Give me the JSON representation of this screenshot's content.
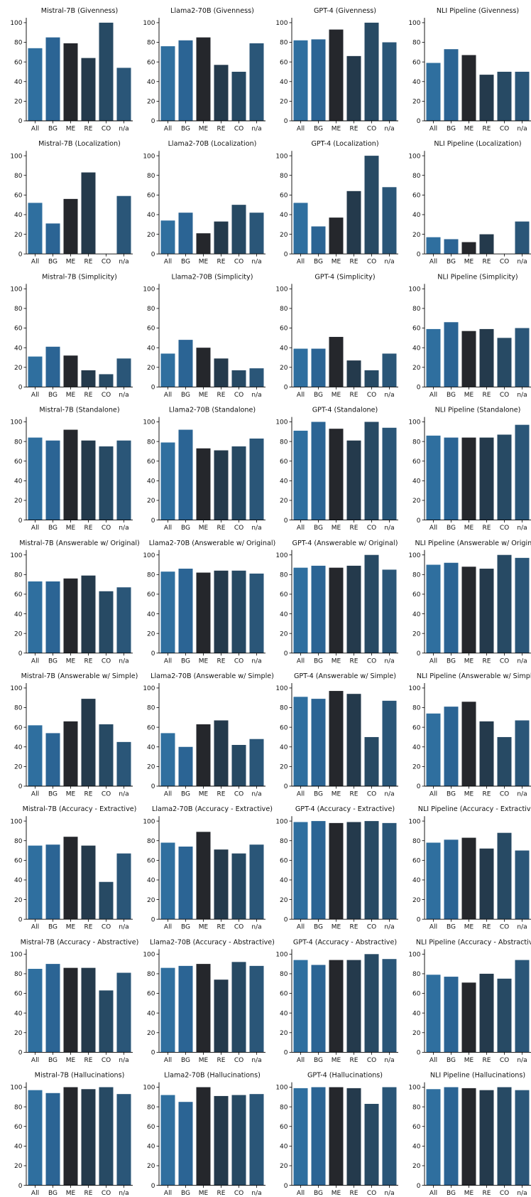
{
  "colors": [
    "#2f6f9f",
    "#2b6494",
    "#25272c",
    "#243a4c",
    "#274a64",
    "#2a5678"
  ],
  "chart_data": [
    {
      "type": "bar",
      "title": "Mistral-7B (Givenness)",
      "categories": [
        "All",
        "BG",
        "ME",
        "RE",
        "CO",
        "n/a"
      ],
      "values": [
        74,
        85,
        79,
        64,
        100,
        54
      ],
      "ylim": [
        0,
        105
      ],
      "yticks": [
        0,
        20,
        40,
        60,
        80,
        100
      ]
    },
    {
      "type": "bar",
      "title": "Llama2-70B (Givenness)",
      "categories": [
        "All",
        "BG",
        "ME",
        "RE",
        "CO",
        "n/a"
      ],
      "values": [
        76,
        82,
        85,
        57,
        50,
        79
      ],
      "ylim": [
        0,
        105
      ],
      "yticks": [
        0,
        20,
        40,
        60,
        80,
        100
      ]
    },
    {
      "type": "bar",
      "title": "GPT-4 (Givenness)",
      "categories": [
        "All",
        "BG",
        "ME",
        "RE",
        "CO",
        "n/a"
      ],
      "values": [
        82,
        83,
        93,
        66,
        100,
        80
      ],
      "ylim": [
        0,
        105
      ],
      "yticks": [
        0,
        20,
        40,
        60,
        80,
        100
      ]
    },
    {
      "type": "bar",
      "title": "NLI Pipeline (Givenness)",
      "categories": [
        "All",
        "BG",
        "ME",
        "RE",
        "CO",
        "n/a"
      ],
      "values": [
        59,
        73,
        67,
        47,
        50,
        50
      ],
      "ylim": [
        0,
        105
      ],
      "yticks": [
        0,
        20,
        40,
        60,
        80,
        100
      ]
    },
    {
      "type": "bar",
      "title": "Mistral-7B (Localization)",
      "categories": [
        "All",
        "BG",
        "ME",
        "RE",
        "CO",
        "n/a"
      ],
      "values": [
        52,
        31,
        56,
        83,
        0,
        59
      ],
      "ylim": [
        0,
        105
      ],
      "yticks": [
        0,
        20,
        40,
        60,
        80,
        100
      ]
    },
    {
      "type": "bar",
      "title": "Llama2-70B (Localization)",
      "categories": [
        "All",
        "BG",
        "ME",
        "RE",
        "CO",
        "n/a"
      ],
      "values": [
        34,
        42,
        21,
        33,
        50,
        42
      ],
      "ylim": [
        0,
        105
      ],
      "yticks": [
        0,
        20,
        40,
        60,
        80,
        100
      ]
    },
    {
      "type": "bar",
      "title": "GPT-4 (Localization)",
      "categories": [
        "All",
        "BG",
        "ME",
        "RE",
        "CO",
        "n/a"
      ],
      "values": [
        52,
        28,
        37,
        64,
        100,
        68
      ],
      "ylim": [
        0,
        105
      ],
      "yticks": [
        0,
        20,
        40,
        60,
        80,
        100
      ]
    },
    {
      "type": "bar",
      "title": "NLI Pipeline (Localization)",
      "categories": [
        "All",
        "BG",
        "ME",
        "RE",
        "CO",
        "n/a"
      ],
      "values": [
        17,
        15,
        12,
        20,
        0,
        33
      ],
      "ylim": [
        0,
        105
      ],
      "yticks": [
        0,
        20,
        40,
        60,
        80,
        100
      ]
    },
    {
      "type": "bar",
      "title": "Mistral-7B (Simplicity)",
      "categories": [
        "All",
        "BG",
        "ME",
        "RE",
        "CO",
        "n/a"
      ],
      "values": [
        31,
        41,
        32,
        17,
        13,
        29
      ],
      "ylim": [
        0,
        105
      ],
      "yticks": [
        0,
        20,
        40,
        60,
        80,
        100
      ]
    },
    {
      "type": "bar",
      "title": "Llama2-70B (Simplicity)",
      "categories": [
        "All",
        "BG",
        "ME",
        "RE",
        "CO",
        "n/a"
      ],
      "values": [
        34,
        48,
        40,
        29,
        17,
        19
      ],
      "ylim": [
        0,
        105
      ],
      "yticks": [
        0,
        20,
        40,
        60,
        80,
        100
      ]
    },
    {
      "type": "bar",
      "title": "GPT-4 (Simplicity)",
      "categories": [
        "All",
        "BG",
        "ME",
        "RE",
        "CO",
        "n/a"
      ],
      "values": [
        39,
        39,
        51,
        27,
        17,
        34
      ],
      "ylim": [
        0,
        105
      ],
      "yticks": [
        0,
        20,
        40,
        60,
        80,
        100
      ]
    },
    {
      "type": "bar",
      "title": "NLI Pipeline (Simplicity)",
      "categories": [
        "All",
        "BG",
        "ME",
        "RE",
        "CO",
        "n/a"
      ],
      "values": [
        59,
        66,
        57,
        59,
        50,
        60
      ],
      "ylim": [
        0,
        105
      ],
      "yticks": [
        0,
        20,
        40,
        60,
        80,
        100
      ]
    },
    {
      "type": "bar",
      "title": "Mistral-7B (Standalone)",
      "categories": [
        "All",
        "BG",
        "ME",
        "RE",
        "CO",
        "n/a"
      ],
      "values": [
        84,
        81,
        92,
        81,
        75,
        81
      ],
      "ylim": [
        0,
        105
      ],
      "yticks": [
        0,
        20,
        40,
        60,
        80,
        100
      ]
    },
    {
      "type": "bar",
      "title": "Llama2-70B (Standalone)",
      "categories": [
        "All",
        "BG",
        "ME",
        "RE",
        "CO",
        "n/a"
      ],
      "values": [
        79,
        92,
        73,
        71,
        75,
        83
      ],
      "ylim": [
        0,
        105
      ],
      "yticks": [
        0,
        20,
        40,
        60,
        80,
        100
      ]
    },
    {
      "type": "bar",
      "title": "GPT-4 (Standalone)",
      "categories": [
        "All",
        "BG",
        "ME",
        "RE",
        "CO",
        "n/a"
      ],
      "values": [
        91,
        100,
        93,
        81,
        100,
        94
      ],
      "ylim": [
        0,
        105
      ],
      "yticks": [
        0,
        20,
        40,
        60,
        80,
        100
      ]
    },
    {
      "type": "bar",
      "title": "NLI Pipeline (Standalone)",
      "categories": [
        "All",
        "BG",
        "ME",
        "RE",
        "CO",
        "n/a"
      ],
      "values": [
        86,
        84,
        84,
        84,
        87,
        97
      ],
      "ylim": [
        0,
        105
      ],
      "yticks": [
        0,
        20,
        40,
        60,
        80,
        100
      ]
    },
    {
      "type": "bar",
      "title": "Mistral-7B (Answerable w/ Original)",
      "categories": [
        "All",
        "BG",
        "ME",
        "RE",
        "CO",
        "n/a"
      ],
      "values": [
        73,
        73,
        76,
        79,
        63,
        67
      ],
      "ylim": [
        0,
        105
      ],
      "yticks": [
        0,
        20,
        40,
        60,
        80,
        100
      ]
    },
    {
      "type": "bar",
      "title": "Llama2-70B (Answerable w/ Original)",
      "categories": [
        "All",
        "BG",
        "ME",
        "RE",
        "CO",
        "n/a"
      ],
      "values": [
        83,
        86,
        82,
        84,
        84,
        81
      ],
      "ylim": [
        0,
        105
      ],
      "yticks": [
        0,
        20,
        40,
        60,
        80,
        100
      ]
    },
    {
      "type": "bar",
      "title": "GPT-4 (Answerable w/ Original)",
      "categories": [
        "All",
        "BG",
        "ME",
        "RE",
        "CO",
        "n/a"
      ],
      "values": [
        87,
        89,
        87,
        89,
        100,
        85
      ],
      "ylim": [
        0,
        105
      ],
      "yticks": [
        0,
        20,
        40,
        60,
        80,
        100
      ]
    },
    {
      "type": "bar",
      "title": "NLI Pipeline (Answerable w/ Original)",
      "categories": [
        "All",
        "BG",
        "ME",
        "RE",
        "CO",
        "n/a"
      ],
      "values": [
        90,
        92,
        88,
        86,
        100,
        97
      ],
      "ylim": [
        0,
        105
      ],
      "yticks": [
        0,
        20,
        40,
        60,
        80,
        100
      ]
    },
    {
      "type": "bar",
      "title": "Mistral-7B (Answerable w/ Simple)",
      "categories": [
        "All",
        "BG",
        "ME",
        "RE",
        "CO",
        "n/a"
      ],
      "values": [
        62,
        54,
        66,
        89,
        63,
        45
      ],
      "ylim": [
        0,
        105
      ],
      "yticks": [
        0,
        20,
        40,
        60,
        80,
        100
      ]
    },
    {
      "type": "bar",
      "title": "Llama2-70B (Answerable w/ Simple)",
      "categories": [
        "All",
        "BG",
        "ME",
        "RE",
        "CO",
        "n/a"
      ],
      "values": [
        54,
        40,
        63,
        67,
        42,
        48
      ],
      "ylim": [
        0,
        105
      ],
      "yticks": [
        0,
        20,
        40,
        60,
        80,
        100
      ]
    },
    {
      "type": "bar",
      "title": "GPT-4 (Answerable w/ Simple)",
      "categories": [
        "All",
        "BG",
        "ME",
        "RE",
        "CO",
        "n/a"
      ],
      "values": [
        91,
        89,
        97,
        94,
        50,
        87
      ],
      "ylim": [
        0,
        105
      ],
      "yticks": [
        0,
        20,
        40,
        60,
        80,
        100
      ]
    },
    {
      "type": "bar",
      "title": "NLI Pipeline (Answerable w/ Simple)",
      "categories": [
        "All",
        "BG",
        "ME",
        "RE",
        "CO",
        "n/a"
      ],
      "values": [
        74,
        81,
        86,
        66,
        50,
        67
      ],
      "ylim": [
        0,
        105
      ],
      "yticks": [
        0,
        20,
        40,
        60,
        80,
        100
      ]
    },
    {
      "type": "bar",
      "title": "Mistral-7B (Accuracy - Extractive)",
      "categories": [
        "All",
        "BG",
        "ME",
        "RE",
        "CO",
        "n/a"
      ],
      "values": [
        75,
        76,
        84,
        75,
        38,
        67
      ],
      "ylim": [
        0,
        105
      ],
      "yticks": [
        0,
        20,
        40,
        60,
        80,
        100
      ]
    },
    {
      "type": "bar",
      "title": "Llama2-70B (Accuracy - Extractive)",
      "categories": [
        "All",
        "BG",
        "ME",
        "RE",
        "CO",
        "n/a"
      ],
      "values": [
        78,
        74,
        89,
        71,
        67,
        76
      ],
      "ylim": [
        0,
        105
      ],
      "yticks": [
        0,
        20,
        40,
        60,
        80,
        100
      ]
    },
    {
      "type": "bar",
      "title": "GPT-4 (Accuracy - Extractive)",
      "categories": [
        "All",
        "BG",
        "ME",
        "RE",
        "CO",
        "n/a"
      ],
      "values": [
        99,
        100,
        98,
        99,
        100,
        98
      ],
      "ylim": [
        0,
        105
      ],
      "yticks": [
        0,
        20,
        40,
        60,
        80,
        100
      ]
    },
    {
      "type": "bar",
      "title": "NLI Pipeline (Accuracy - Extractive)",
      "categories": [
        "All",
        "BG",
        "ME",
        "RE",
        "CO",
        "n/a"
      ],
      "values": [
        78,
        81,
        83,
        72,
        88,
        70
      ],
      "ylim": [
        0,
        105
      ],
      "yticks": [
        0,
        20,
        40,
        60,
        80,
        100
      ]
    },
    {
      "type": "bar",
      "title": "Mistral-7B (Accuracy - Abstractive)",
      "categories": [
        "All",
        "BG",
        "ME",
        "RE",
        "CO",
        "n/a"
      ],
      "values": [
        85,
        90,
        86,
        86,
        63,
        81
      ],
      "ylim": [
        0,
        105
      ],
      "yticks": [
        0,
        20,
        40,
        60,
        80,
        100
      ]
    },
    {
      "type": "bar",
      "title": "Llama2-70B (Accuracy - Abstractive)",
      "categories": [
        "All",
        "BG",
        "ME",
        "RE",
        "CO",
        "n/a"
      ],
      "values": [
        86,
        88,
        90,
        74,
        92,
        88
      ],
      "ylim": [
        0,
        105
      ],
      "yticks": [
        0,
        20,
        40,
        60,
        80,
        100
      ]
    },
    {
      "type": "bar",
      "title": "GPT-4 (Accuracy - Abstractive)",
      "categories": [
        "All",
        "BG",
        "ME",
        "RE",
        "CO",
        "n/a"
      ],
      "values": [
        94,
        89,
        94,
        94,
        100,
        95
      ],
      "ylim": [
        0,
        105
      ],
      "yticks": [
        0,
        20,
        40,
        60,
        80,
        100
      ]
    },
    {
      "type": "bar",
      "title": "NLI Pipeline (Accuracy - Abstractive)",
      "categories": [
        "All",
        "BG",
        "ME",
        "RE",
        "CO",
        "n/a"
      ],
      "values": [
        79,
        77,
        71,
        80,
        75,
        94
      ],
      "ylim": [
        0,
        105
      ],
      "yticks": [
        0,
        20,
        40,
        60,
        80,
        100
      ]
    },
    {
      "type": "bar",
      "title": "Mistral-7B (Hallucinations)",
      "categories": [
        "All",
        "BG",
        "ME",
        "RE",
        "CO",
        "n/a"
      ],
      "values": [
        97,
        94,
        100,
        98,
        100,
        93
      ],
      "ylim": [
        0,
        105
      ],
      "yticks": [
        0,
        20,
        40,
        60,
        80,
        100
      ]
    },
    {
      "type": "bar",
      "title": "Llama2-70B (Hallucinations)",
      "categories": [
        "All",
        "BG",
        "ME",
        "RE",
        "CO",
        "n/a"
      ],
      "values": [
        92,
        85,
        100,
        91,
        92,
        93
      ],
      "ylim": [
        0,
        105
      ],
      "yticks": [
        0,
        20,
        40,
        60,
        80,
        100
      ]
    },
    {
      "type": "bar",
      "title": "GPT-4 (Hallucinations)",
      "categories": [
        "All",
        "BG",
        "ME",
        "RE",
        "CO",
        "n/a"
      ],
      "values": [
        99,
        100,
        100,
        99,
        83,
        100
      ],
      "ylim": [
        0,
        105
      ],
      "yticks": [
        0,
        20,
        40,
        60,
        80,
        100
      ]
    },
    {
      "type": "bar",
      "title": "NLI Pipeline (Hallucinations)",
      "categories": [
        "All",
        "BG",
        "ME",
        "RE",
        "CO",
        "n/a"
      ],
      "values": [
        98,
        100,
        99,
        97,
        100,
        97
      ],
      "ylim": [
        0,
        105
      ],
      "yticks": [
        0,
        20,
        40,
        60,
        80,
        100
      ]
    }
  ]
}
